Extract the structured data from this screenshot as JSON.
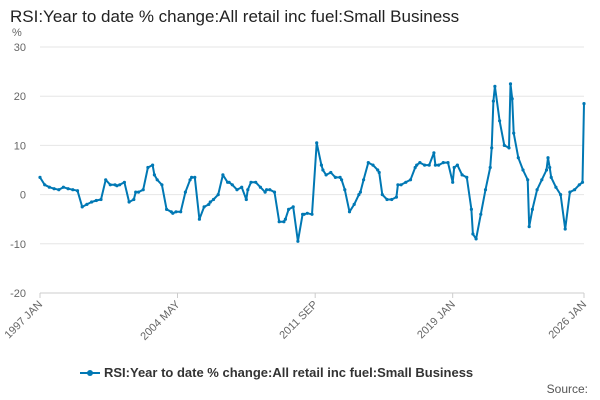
{
  "title": "RSI:Year to date % change:All retail inc fuel:Small Business",
  "source_label": "Source:",
  "chart_data": {
    "type": "line",
    "title": "RSI:Year to date % change:All retail inc fuel:Small Business",
    "ylabel": "%",
    "xlabel": "",
    "ylim": [
      -20,
      30
    ],
    "yticks": [
      -20,
      -10,
      0,
      10,
      20,
      30
    ],
    "xlim": [
      1997.0,
      2026.0
    ],
    "xticks": [
      {
        "label": "1997 JAN",
        "value": 1997.0
      },
      {
        "label": "2004 MAY",
        "value": 2004.33
      },
      {
        "label": "2011 SEP",
        "value": 2011.67
      },
      {
        "label": "2019 JAN",
        "value": 2019.0
      },
      {
        "label": "2026 JAN",
        "value": 2026.0
      }
    ],
    "grid": true,
    "legend": "bottom-center",
    "color": "#0078b4",
    "series": [
      {
        "name": "RSI:Year to date % change:All retail inc fuel:Small Business",
        "x": [
          1997.0,
          1997.25,
          1997.5,
          1997.75,
          1998.0,
          1998.25,
          1998.5,
          1998.75,
          1999.0,
          1999.25,
          1999.5,
          1999.75,
          2000.0,
          2000.25,
          2000.5,
          2000.75,
          2001.0,
          2001.1,
          2001.25,
          2001.5,
          2001.75,
          2002.0,
          2002.1,
          2002.25,
          2002.5,
          2002.75,
          2003.0,
          2003.1,
          2003.25,
          2003.5,
          2003.75,
          2004.0,
          2004.08,
          2004.25,
          2004.5,
          2004.75,
          2005.0,
          2005.08,
          2005.25,
          2005.5,
          2005.75,
          2006.0,
          2006.08,
          2006.25,
          2006.5,
          2006.75,
          2007.0,
          2007.08,
          2007.25,
          2007.5,
          2007.75,
          2008.0,
          2008.08,
          2008.25,
          2008.5,
          2008.75,
          2009.0,
          2009.08,
          2009.25,
          2009.5,
          2009.75,
          2010.0,
          2010.08,
          2010.25,
          2010.5,
          2010.75,
          2011.0,
          2011.08,
          2011.25,
          2011.5,
          2011.75,
          2012.0,
          2012.08,
          2012.25,
          2012.5,
          2012.75,
          2013.0,
          2013.08,
          2013.25,
          2013.5,
          2013.75,
          2014.0,
          2014.08,
          2014.25,
          2014.5,
          2014.75,
          2015.0,
          2015.08,
          2015.25,
          2015.5,
          2015.75,
          2016.0,
          2016.08,
          2016.25,
          2016.5,
          2016.75,
          2017.0,
          2017.08,
          2017.25,
          2017.5,
          2017.75,
          2018.0,
          2018.08,
          2018.25,
          2018.5,
          2018.75,
          2019.0,
          2019.08,
          2019.25,
          2019.5,
          2019.75,
          2020.0,
          2020.08,
          2020.25,
          2020.5,
          2020.75,
          2021.0,
          2021.08,
          2021.17,
          2021.25,
          2021.5,
          2021.75,
          2022.0,
          2022.08,
          2022.17,
          2022.25,
          2022.5,
          2022.75,
          2023.0,
          2023.08,
          2023.25,
          2023.5,
          2023.75,
          2024.0,
          2024.08,
          2024.17,
          2024.25,
          2024.5,
          2024.75,
          2025.0,
          2025.25,
          2025.5,
          2025.75,
          2025.92,
          2026.0
        ],
        "values": [
          3.5,
          2.0,
          1.5,
          1.2,
          1.0,
          1.5,
          1.2,
          1.0,
          0.8,
          -2.5,
          -2.0,
          -1.5,
          -1.2,
          -1.0,
          3.0,
          2.0,
          2.0,
          1.8,
          2.0,
          2.5,
          -1.5,
          -1.0,
          0.5,
          0.5,
          1.0,
          5.5,
          6.0,
          4.0,
          3.0,
          2.0,
          -3.0,
          -3.5,
          -3.8,
          -3.5,
          -3.5,
          0.5,
          3.0,
          3.5,
          3.5,
          -5.0,
          -2.5,
          -2.0,
          -1.5,
          -1.0,
          0.0,
          4.0,
          2.5,
          2.5,
          2.0,
          1.0,
          1.5,
          -1.0,
          1.0,
          2.5,
          2.5,
          1.5,
          0.5,
          1.0,
          1.0,
          0.5,
          -5.5,
          -5.5,
          -5.0,
          -3.0,
          -2.5,
          -9.5,
          -4.0,
          -4.0,
          -3.8,
          -4.0,
          10.5,
          6.0,
          5.0,
          4.0,
          4.5,
          3.5,
          3.5,
          3.0,
          1.0,
          -3.5,
          -2.0,
          0.0,
          0.5,
          3.0,
          6.5,
          6.0,
          5.0,
          4.5,
          0.0,
          -1.0,
          -1.0,
          -0.5,
          2.0,
          2.0,
          2.5,
          3.0,
          5.5,
          6.0,
          6.5,
          6.0,
          6.0,
          8.5,
          6.0,
          6.0,
          6.5,
          6.5,
          2.5,
          5.5,
          6.0,
          4.0,
          3.5,
          -3.0,
          -8.0,
          -9.0,
          -4.0,
          1.0,
          5.5,
          9.5,
          19.0,
          22.0,
          15.0,
          10.0,
          9.5,
          22.5,
          19.5,
          12.5,
          7.5,
          5.0,
          3.0,
          -6.5,
          -3.0,
          1.0,
          3.0,
          5.0,
          7.5,
          5.5,
          3.5,
          1.5,
          0.0,
          -7.0,
          0.5,
          1.0,
          2.0,
          2.5,
          18.5
        ]
      }
    ]
  }
}
